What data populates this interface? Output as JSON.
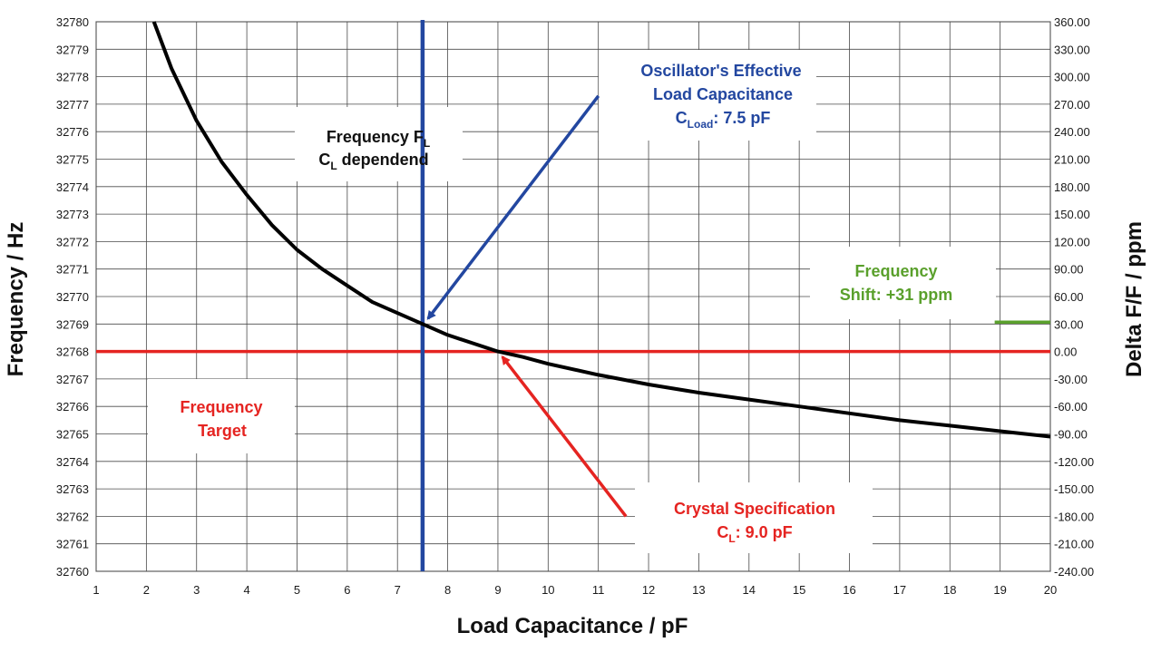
{
  "chart_data": {
    "type": "line",
    "xlabel": "Load Capacitance  / pF",
    "ylabel": "Frequency  / Hz",
    "y2label": "Delta F/F / ppm",
    "xlim": [
      1,
      20
    ],
    "ylim": [
      32760,
      32780
    ],
    "y2lim": [
      -240,
      360
    ],
    "grid": true,
    "x_ticks": [
      "1",
      "2",
      "3",
      "4",
      "5",
      "6",
      "7",
      "8",
      "9",
      "10",
      "11",
      "12",
      "13",
      "14",
      "15",
      "16",
      "17",
      "18",
      "19",
      "20"
    ],
    "y_ticks": [
      "32760",
      "32761",
      "32762",
      "32763",
      "32764",
      "32765",
      "32766",
      "32767",
      "32768",
      "32769",
      "32770",
      "32771",
      "32772",
      "32773",
      "32774",
      "32775",
      "32776",
      "32777",
      "32778",
      "32779",
      "32780"
    ],
    "y2_ticks": [
      "-240.00",
      "-210.00",
      "-180.00",
      "-150.00",
      "-120.00",
      "-90.00",
      "-60.00",
      "-30.00",
      "0.00",
      "30.00",
      "60.00",
      "90.00",
      "120.00",
      "150.00",
      "180.00",
      "210.00",
      "240.00",
      "270.00",
      "300.00",
      "330.00",
      "360.00"
    ],
    "series": [
      {
        "color": "#000000",
        "x": [
          2.15,
          2.5,
          3,
          3.5,
          4,
          4.5,
          5,
          5.5,
          6,
          6.5,
          7,
          7.5,
          8,
          8.5,
          9,
          9.5,
          10,
          11,
          12,
          13,
          14,
          15,
          16,
          17,
          18,
          19,
          20
        ],
        "y": [
          32780,
          32778.3,
          32776.4,
          32774.9,
          32773.7,
          32772.6,
          32771.7,
          32771.0,
          32770.4,
          32769.8,
          32769.4,
          32769.0,
          32768.6,
          32768.3,
          32768.0,
          32767.8,
          32767.55,
          32767.15,
          32766.8,
          32766.5,
          32766.25,
          32766.0,
          32765.75,
          32765.5,
          32765.3,
          32765.1,
          32764.9
        ]
      }
    ],
    "reference_lines": [
      {
        "orientation": "horizontal",
        "y": 32768,
        "color": "#e52421"
      },
      {
        "orientation": "vertical",
        "x": 7.5,
        "color": "#2347a0"
      }
    ],
    "shift_marker": {
      "x_from": 19,
      "x_to": 20,
      "y": 32769,
      "color": "#5aa02c"
    },
    "colors": {
      "red": "#e52421",
      "blue": "#2347a0",
      "green": "#5aa02c",
      "curve": "#000000"
    },
    "annotations": {
      "freq_fl": {
        "line1": "Frequency F",
        "line1_sub": "L",
        "line2_pre": "C",
        "line2_sub": "L",
        "line2_rest": " dependend"
      },
      "oscillator": {
        "line1": "Oscillator's Effective",
        "line2": "Load Capacitance",
        "line3_pre": "C",
        "line3_sub": "Load",
        "line3_rest": ": 7.5 pF",
        "arrow_tail": [
          11.0,
          32777.3
        ],
        "arrow_head": [
          7.5,
          32769.0
        ]
      },
      "freq_target": {
        "line1": "Frequency",
        "line2": "Target"
      },
      "crystal": {
        "line1": "Crystal Specification",
        "line2_pre": "C",
        "line2_sub": "L",
        "line2_rest": ": 9.0 pF",
        "arrow_tail": [
          11.55,
          32762.0
        ],
        "arrow_head": [
          9.0,
          32768.0
        ]
      },
      "freq_shift": {
        "line1": "Frequency",
        "line2": "Shift: +31 ppm"
      }
    }
  }
}
